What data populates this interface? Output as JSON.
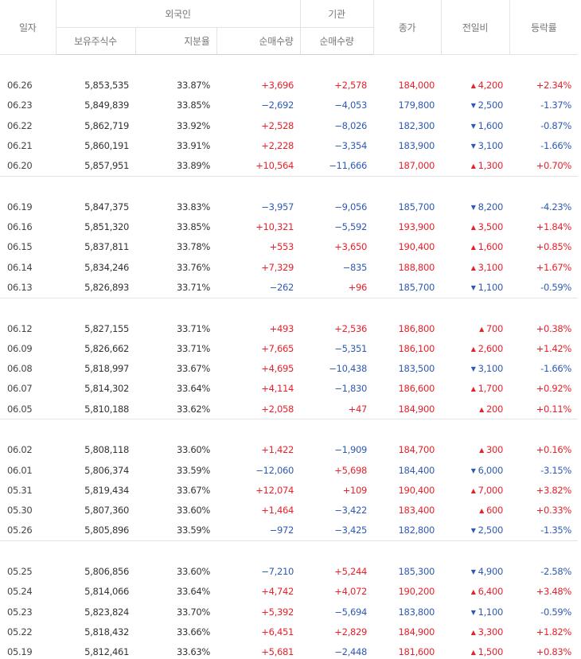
{
  "header": {
    "date": "일자",
    "foreign": "외국인",
    "institution": "기관",
    "close": "종가",
    "change": "전일비",
    "rate": "등락률",
    "holdings": "보유주식수",
    "share": "지분율",
    "foreign_net": "순매수량",
    "inst_net": "순매수량"
  },
  "groups": [
    [
      {
        "date": "06.26",
        "holdings": "5,853,535",
        "share": "33.87%",
        "fnet": "+3,696",
        "inet": "+2,578",
        "close": "184,000",
        "dir": "up",
        "change": "4,200",
        "rate": "+2.34%"
      },
      {
        "date": "06.23",
        "holdings": "5,849,839",
        "share": "33.85%",
        "fnet": "−2,692",
        "inet": "−4,053",
        "close": "179,800",
        "dir": "down",
        "change": "2,500",
        "rate": "-1.37%"
      },
      {
        "date": "06.22",
        "holdings": "5,862,719",
        "share": "33.92%",
        "fnet": "+2,528",
        "inet": "−8,026",
        "close": "182,300",
        "dir": "down",
        "change": "1,600",
        "rate": "-0.87%"
      },
      {
        "date": "06.21",
        "holdings": "5,860,191",
        "share": "33.91%",
        "fnet": "+2,228",
        "inet": "−3,354",
        "close": "183,900",
        "dir": "down",
        "change": "3,100",
        "rate": "-1.66%"
      },
      {
        "date": "06.20",
        "holdings": "5,857,951",
        "share": "33.89%",
        "fnet": "+10,564",
        "inet": "−11,666",
        "close": "187,000",
        "dir": "up",
        "change": "1,300",
        "rate": "+0.70%"
      }
    ],
    [
      {
        "date": "06.19",
        "holdings": "5,847,375",
        "share": "33.83%",
        "fnet": "−3,957",
        "inet": "−9,056",
        "close": "185,700",
        "dir": "down",
        "change": "8,200",
        "rate": "-4.23%"
      },
      {
        "date": "06.16",
        "holdings": "5,851,320",
        "share": "33.85%",
        "fnet": "+10,321",
        "inet": "−5,592",
        "close": "193,900",
        "dir": "up",
        "change": "3,500",
        "rate": "+1.84%"
      },
      {
        "date": "06.15",
        "holdings": "5,837,811",
        "share": "33.78%",
        "fnet": "+553",
        "inet": "+3,650",
        "close": "190,400",
        "dir": "up",
        "change": "1,600",
        "rate": "+0.85%"
      },
      {
        "date": "06.14",
        "holdings": "5,834,246",
        "share": "33.76%",
        "fnet": "+7,329",
        "inet": "−835",
        "close": "188,800",
        "dir": "up",
        "change": "3,100",
        "rate": "+1.67%"
      },
      {
        "date": "06.13",
        "holdings": "5,826,893",
        "share": "33.71%",
        "fnet": "−262",
        "inet": "+96",
        "close": "185,700",
        "dir": "down",
        "change": "1,100",
        "rate": "-0.59%"
      }
    ],
    [
      {
        "date": "06.12",
        "holdings": "5,827,155",
        "share": "33.71%",
        "fnet": "+493",
        "inet": "+2,536",
        "close": "186,800",
        "dir": "up",
        "change": "700",
        "rate": "+0.38%"
      },
      {
        "date": "06.09",
        "holdings": "5,826,662",
        "share": "33.71%",
        "fnet": "+7,665",
        "inet": "−5,351",
        "close": "186,100",
        "dir": "up",
        "change": "2,600",
        "rate": "+1.42%"
      },
      {
        "date": "06.08",
        "holdings": "5,818,997",
        "share": "33.67%",
        "fnet": "+4,695",
        "inet": "−10,438",
        "close": "183,500",
        "dir": "down",
        "change": "3,100",
        "rate": "-1.66%"
      },
      {
        "date": "06.07",
        "holdings": "5,814,302",
        "share": "33.64%",
        "fnet": "+4,114",
        "inet": "−1,830",
        "close": "186,600",
        "dir": "up",
        "change": "1,700",
        "rate": "+0.92%"
      },
      {
        "date": "06.05",
        "holdings": "5,810,188",
        "share": "33.62%",
        "fnet": "+2,058",
        "inet": "+47",
        "close": "184,900",
        "dir": "up",
        "change": "200",
        "rate": "+0.11%"
      }
    ],
    [
      {
        "date": "06.02",
        "holdings": "5,808,118",
        "share": "33.60%",
        "fnet": "+1,422",
        "inet": "−1,909",
        "close": "184,700",
        "dir": "up",
        "change": "300",
        "rate": "+0.16%"
      },
      {
        "date": "06.01",
        "holdings": "5,806,374",
        "share": "33.59%",
        "fnet": "−12,060",
        "inet": "+5,698",
        "close": "184,400",
        "dir": "down",
        "change": "6,000",
        "rate": "-3.15%"
      },
      {
        "date": "05.31",
        "holdings": "5,819,434",
        "share": "33.67%",
        "fnet": "+12,074",
        "inet": "+109",
        "close": "190,400",
        "dir": "up",
        "change": "7,000",
        "rate": "+3.82%"
      },
      {
        "date": "05.30",
        "holdings": "5,807,360",
        "share": "33.60%",
        "fnet": "+1,464",
        "inet": "−3,422",
        "close": "183,400",
        "dir": "up",
        "change": "600",
        "rate": "+0.33%"
      },
      {
        "date": "05.26",
        "holdings": "5,805,896",
        "share": "33.59%",
        "fnet": "−972",
        "inet": "−3,425",
        "close": "182,800",
        "dir": "down",
        "change": "2,500",
        "rate": "-1.35%"
      }
    ],
    [
      {
        "date": "05.25",
        "holdings": "5,806,856",
        "share": "33.60%",
        "fnet": "−7,210",
        "inet": "+5,244",
        "close": "185,300",
        "dir": "down",
        "change": "4,900",
        "rate": "-2.58%"
      },
      {
        "date": "05.24",
        "holdings": "5,814,066",
        "share": "33.64%",
        "fnet": "+4,742",
        "inet": "+4,072",
        "close": "190,200",
        "dir": "up",
        "change": "6,400",
        "rate": "+3.48%"
      },
      {
        "date": "05.23",
        "holdings": "5,823,824",
        "share": "33.70%",
        "fnet": "+5,392",
        "inet": "−5,694",
        "close": "183,800",
        "dir": "down",
        "change": "1,100",
        "rate": "-0.59%"
      },
      {
        "date": "05.22",
        "holdings": "5,818,432",
        "share": "33.66%",
        "fnet": "+6,451",
        "inet": "+2,829",
        "close": "184,900",
        "dir": "up",
        "change": "3,300",
        "rate": "+1.82%"
      },
      {
        "date": "05.19",
        "holdings": "5,812,461",
        "share": "33.63%",
        "fnet": "+5,681",
        "inet": "−2,448",
        "close": "181,600",
        "dir": "up",
        "change": "1,500",
        "rate": "+0.83%"
      }
    ]
  ],
  "colors": {
    "up": "#e8212a",
    "down": "#2e5ab5"
  },
  "icons": {
    "up": "triangle-up-icon",
    "down": "triangle-down-icon"
  }
}
